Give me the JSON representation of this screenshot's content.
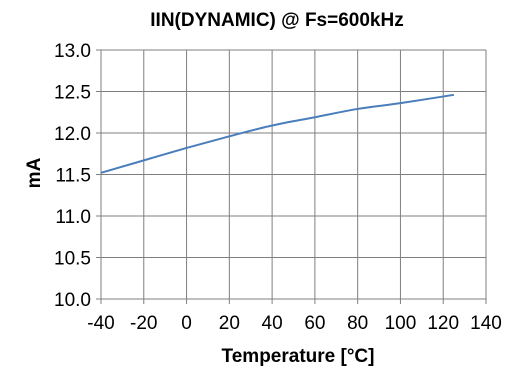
{
  "chart_data": {
    "type": "line",
    "title": "IIN(DYNAMIC) @ Fs=600kHz",
    "xlabel": "Temperature [°C]",
    "ylabel": "mA",
    "xlim": [
      -40,
      140
    ],
    "ylim": [
      10.0,
      13.0
    ],
    "x_ticks": [
      "-40",
      "-20",
      "0",
      "20",
      "40",
      "60",
      "80",
      "100",
      "120",
      "140"
    ],
    "y_ticks": [
      "10.0",
      "10.5",
      "11.0",
      "11.5",
      "12.0",
      "12.5",
      "13.0"
    ],
    "grid": {
      "vertical": true,
      "horizontal": true
    },
    "line_color": "#4a7ebb",
    "series": [
      {
        "x": [
          -40,
          -20,
          0,
          20,
          40,
          60,
          80,
          100,
          125
        ],
        "y": [
          11.52,
          11.67,
          11.82,
          11.96,
          12.09,
          12.19,
          12.29,
          12.36,
          12.46
        ]
      }
    ]
  }
}
